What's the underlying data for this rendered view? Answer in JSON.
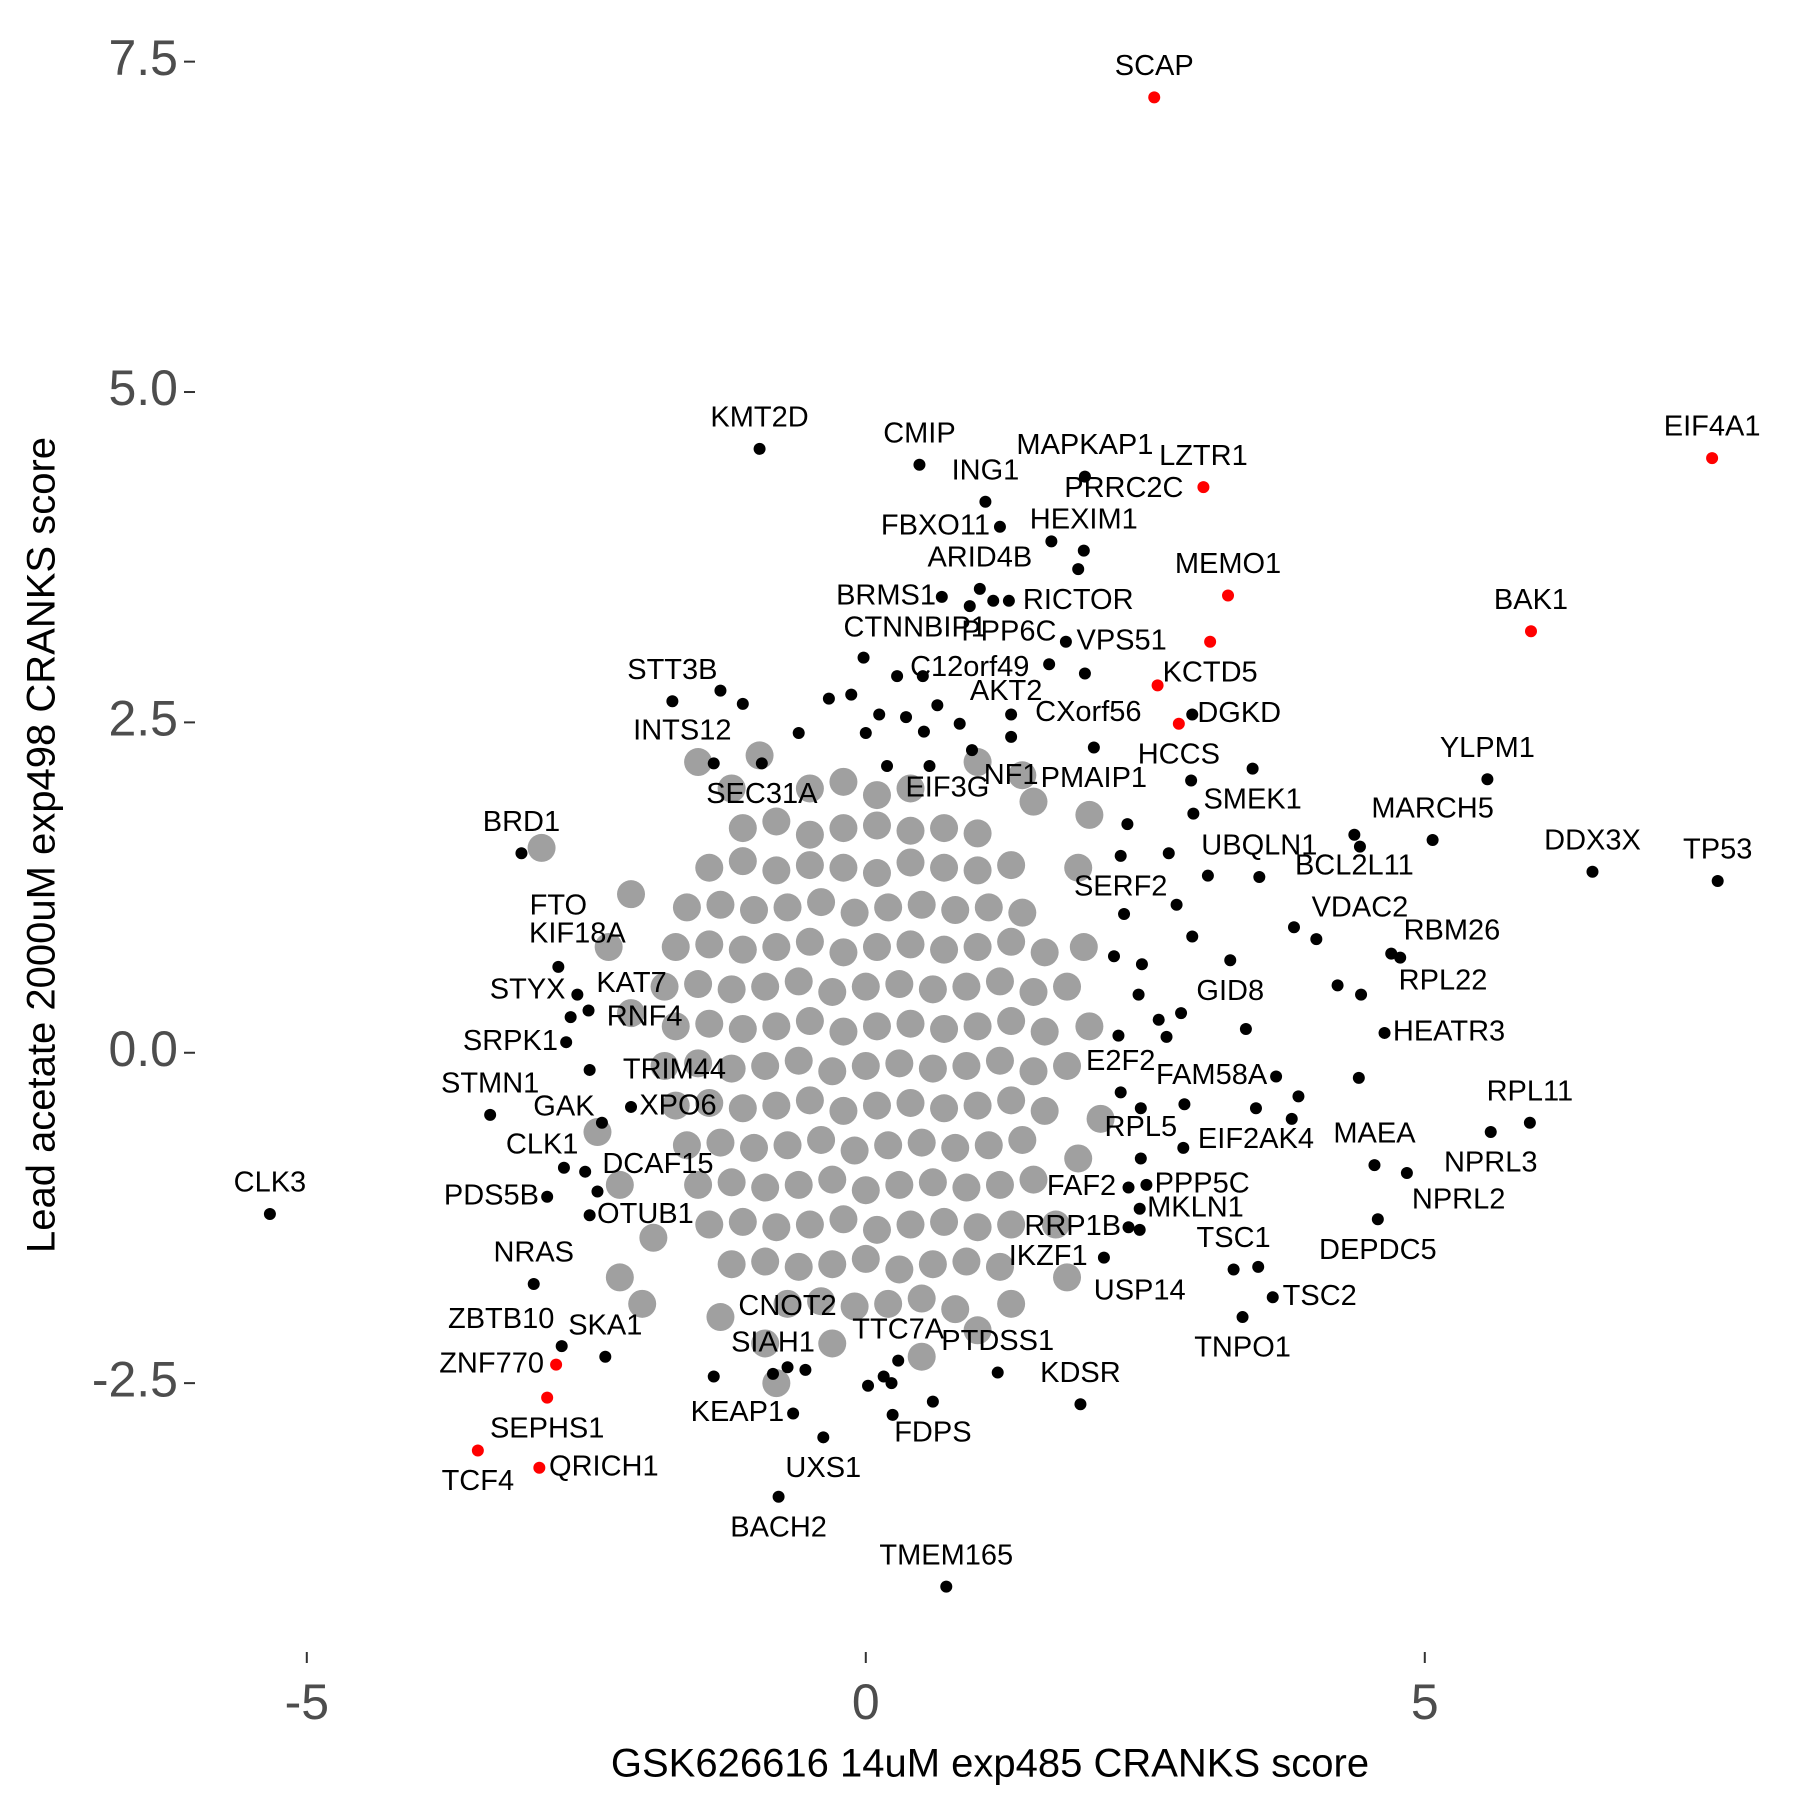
{
  "chart_data": {
    "type": "scatter",
    "xlabel": "GSK626616 14uM exp485 CRANKS score",
    "ylabel": "Lead acetate 2000uM exp498 CRANKS score",
    "xlim": [
      -6.0,
      7.9
    ],
    "ylim": [
      -4.3,
      7.8
    ],
    "xticks": [
      -5,
      0,
      5
    ],
    "yticks": [
      -2.5,
      {
        "value": 0,
        "label": "0.0"
      },
      2.5,
      {
        "value": 5,
        "label": "5.0"
      },
      7.5
    ],
    "grid": false,
    "series": [
      {
        "color": "#a0a0a0",
        "x": [
          -0.5,
          -0.2,
          0.1,
          0.4,
          -1.1,
          -0.8,
          -0.5,
          -0.2,
          0.1,
          0.4,
          0.7,
          1.0,
          -1.4,
          -1.1,
          -0.8,
          -0.5,
          -0.2,
          0.1,
          0.4,
          0.7,
          1.0,
          1.3,
          -1.6,
          -1.3,
          -1.0,
          -0.7,
          -0.4,
          -0.1,
          0.2,
          0.5,
          0.8,
          1.1,
          1.4,
          -1.7,
          -1.4,
          -1.1,
          -0.8,
          -0.5,
          -0.2,
          0.1,
          0.4,
          0.7,
          1.0,
          1.3,
          1.6,
          -1.8,
          -1.5,
          -1.2,
          -0.9,
          -0.6,
          -0.3,
          0,
          0.3,
          0.6,
          0.9,
          1.2,
          1.5,
          1.8,
          -1.7,
          -1.4,
          -1.1,
          -0.8,
          -0.5,
          -0.2,
          0.1,
          0.4,
          0.7,
          1.0,
          1.3,
          1.6,
          -1.8,
          -1.5,
          -1.2,
          -0.9,
          -0.6,
          -0.3,
          0,
          0.3,
          0.6,
          0.9,
          1.2,
          1.5,
          1.8,
          -1.7,
          -1.4,
          -1.1,
          -0.8,
          -0.5,
          -0.2,
          0.1,
          0.4,
          0.7,
          1.0,
          1.3,
          1.6,
          -1.6,
          -1.3,
          -1.0,
          -0.7,
          -0.4,
          -0.1,
          0.2,
          0.5,
          0.8,
          1.1,
          1.4,
          -1.5,
          -1.2,
          -0.9,
          -0.6,
          -0.3,
          0,
          0.3,
          0.6,
          0.9,
          1.2,
          1.5,
          -1.4,
          -1.1,
          -0.8,
          -0.5,
          -0.2,
          0.1,
          0.4,
          0.7,
          1.0,
          1.3,
          -1.2,
          -0.9,
          -0.6,
          -0.3,
          0,
          0.3,
          0.6,
          0.9,
          1.2,
          -0.7,
          -0.4,
          -0.1,
          0.2,
          0.5,
          0.8,
          -2.9,
          -1.5,
          -1.2,
          -0.95,
          -2.1,
          -2.3,
          -2.4,
          -2.2,
          -2.0,
          -2.2,
          -1.3,
          -0.9,
          -0.8,
          -0.3,
          0.5,
          1.0,
          1.3,
          1.8,
          1.9,
          2.0,
          1.95,
          1.9,
          1.5,
          1.4,
          2.0,
          1.0,
          -2.1,
          2.1,
          1.7,
          -1.9
        ],
        "y": [
          2.0,
          2.05,
          1.95,
          2.0,
          1.7,
          1.75,
          1.65,
          1.7,
          1.72,
          1.68,
          1.7,
          1.66,
          1.4,
          1.45,
          1.38,
          1.42,
          1.4,
          1.36,
          1.44,
          1.4,
          1.38,
          1.42,
          1.1,
          1.12,
          1.08,
          1.1,
          1.14,
          1.06,
          1.1,
          1.12,
          1.08,
          1.1,
          1.06,
          0.8,
          0.82,
          0.78,
          0.8,
          0.84,
          0.76,
          0.8,
          0.82,
          0.78,
          0.8,
          0.84,
          0.76,
          0.5,
          0.52,
          0.48,
          0.5,
          0.54,
          0.46,
          0.5,
          0.52,
          0.48,
          0.5,
          0.54,
          0.46,
          0.5,
          0.2,
          0.22,
          0.18,
          0.2,
          0.24,
          0.16,
          0.2,
          0.22,
          0.18,
          0.2,
          0.24,
          0.16,
          -0.1,
          -0.08,
          -0.12,
          -0.1,
          -0.06,
          -0.14,
          -0.1,
          -0.08,
          -0.12,
          -0.1,
          -0.06,
          -0.14,
          -0.1,
          -0.4,
          -0.38,
          -0.42,
          -0.4,
          -0.36,
          -0.44,
          -0.4,
          -0.38,
          -0.42,
          -0.4,
          -0.36,
          -0.44,
          -0.7,
          -0.68,
          -0.72,
          -0.7,
          -0.66,
          -0.74,
          -0.7,
          -0.68,
          -0.72,
          -0.7,
          -0.66,
          -1.0,
          -0.98,
          -1.02,
          -1.0,
          -0.96,
          -1.04,
          -1.0,
          -0.98,
          -1.02,
          -1.0,
          -0.96,
          -1.3,
          -1.28,
          -1.32,
          -1.3,
          -1.26,
          -1.34,
          -1.3,
          -1.28,
          -1.32,
          -1.3,
          -1.6,
          -1.58,
          -1.62,
          -1.6,
          -1.56,
          -1.64,
          -1.6,
          -1.58,
          -1.62,
          -1.9,
          -1.88,
          -1.92,
          -1.9,
          -1.86,
          -1.94,
          1.55,
          2.2,
          2.0,
          2.25,
          1.2,
          0.8,
          -0.6,
          -1.0,
          -1.9,
          -1.7,
          -2.0,
          -2.2,
          -2.5,
          -2.2,
          -2.3,
          -2.1,
          -1.9,
          -1.7,
          -0.8,
          0.2,
          0.8,
          1.4,
          1.9,
          2.1,
          1.8,
          2.2,
          0.3,
          -0.5,
          -1.3,
          -1.4
        ]
      },
      {
        "color": "#000000",
        "x": [
          0.48,
          -0.95,
          1.07,
          1.96,
          1.2,
          1.95,
          1.02,
          1.9,
          1.28,
          1.14,
          0.68,
          0.93,
          1.79,
          1.66,
          1.64,
          1.3,
          -1.73,
          -1.1,
          -0.93,
          2.04,
          1.3,
          2.28,
          -3.08,
          5.56,
          3.46,
          5.07,
          4.37,
          4.42,
          6.5,
          7.62,
          3.52,
          4.7,
          4.78,
          3.26,
          4.64,
          3.67,
          4.55,
          5.94,
          5.59,
          3.49,
          4.84,
          4.58,
          3.29,
          3.64,
          3.37,
          2.46,
          2.28,
          2.35,
          2.51,
          2.35,
          2.45,
          2.45,
          2.13,
          1.18,
          1.92,
          0.6,
          0.29,
          0.72,
          -0.83,
          -0.7,
          -0.65,
          -0.38,
          -0.78,
          -2.33,
          -2.72,
          -2.97,
          -2.47,
          -2.4,
          -2.51,
          -2.7,
          -2.85,
          -5.33,
          -3.36,
          -2.36,
          -2.1,
          -2.68,
          -2.47,
          -2.64,
          -2.48,
          -2.58,
          -2.75,
          2.92
        ],
        "y": [
          4.45,
          4.57,
          4.17,
          4.36,
          3.98,
          3.8,
          3.51,
          3.66,
          3.42,
          3.42,
          3.45,
          3.38,
          3.11,
          3.87,
          2.94,
          2.56,
          2.66,
          2.64,
          2.19,
          2.31,
          2.39,
          1.49,
          1.51,
          2.07,
          2.15,
          1.61,
          1.65,
          1.56,
          1.37,
          1.3,
          1.33,
          0.75,
          0.72,
          0.7,
          0.15,
          -0.18,
          -0.85,
          -0.53,
          -0.6,
          -0.42,
          -0.91,
          -1.26,
          -1.64,
          -1.85,
          -2.0,
          -0.8,
          -0.3,
          -1.02,
          -1.0,
          -1.32,
          -1.18,
          -1.34,
          -1.55,
          -2.42,
          -2.66,
          -2.64,
          -2.33,
          -4.04,
          -2.43,
          -2.38,
          -2.73,
          -2.91,
          -3.36,
          -2.3,
          -2.22,
          -1.75,
          -1.23,
          -1.05,
          -0.9,
          -0.87,
          -1.09,
          -1.22,
          -0.47,
          -0.53,
          -0.41,
          0.08,
          -0.13,
          0.27,
          0.32,
          0.44,
          0.65,
          2.56
        ],
        "labels": [
          "CMIP",
          "KMT2D",
          "ING1",
          "MAPKAP1",
          "FBXO11",
          "HEXIM1",
          "ARID4B",
          "RICTOR",
          "PPP6C",
          "CTNNBIP1",
          "BRMS1",
          "C12orf49",
          "VPS51",
          "PRRC2C",
          "AKT2",
          "NF1",
          "STT3B",
          "INTS12",
          "SEC31A",
          "PMAIP1",
          "EIF3G",
          "SERF2",
          "BRD1",
          "YLPM1",
          "SMEK1",
          "MARCH5",
          "BCL2L11",
          "VDAC2",
          "DDX3X",
          "TP53",
          "UBQLN1",
          "RPL22",
          "RBM26",
          "GID8",
          "HEATR3",
          "FAM58A",
          "MAEA",
          "RPL11",
          "NPRL3",
          "EIF2AK4",
          "NPRL2",
          "DEPDC5",
          "TSC1",
          "TSC2",
          "TNPO1",
          "RPL5",
          "E2F2",
          "FAF2",
          "PPP5C",
          "RRP1B",
          "MKLN1",
          "USP14",
          "IKZF1",
          "PTDSS1",
          "KDSR",
          "FDPS",
          "TTC7A",
          "TMEM165",
          "SIAH1",
          "CNOT2",
          "KEAP1",
          "UXS1",
          "BACH2",
          "SKA1",
          "ZBTB10",
          "NRAS",
          "OTUB1",
          "DCAF15",
          "CLK1",
          "GAK",
          "PDS5B",
          "CLK3",
          "STMN1",
          "TRIM44",
          "XPO6",
          "SRPK1",
          "RNF4",
          "STYX",
          "KAT7",
          "KIF18A",
          "FTO",
          "DGKD"
        ]
      },
      {
        "color": "#000000",
        "x": [
          -0.02,
          0.28,
          0.51,
          -0.33,
          -0.13,
          0.12,
          0.36,
          0.64,
          0.84,
          -0.6,
          0.0,
          0.52,
          0.95,
          0.19,
          0.57,
          1.96,
          2.91,
          2.93,
          2.34,
          2.71,
          3.06,
          2.78,
          2.31,
          2.92,
          2.22,
          2.47,
          3.83,
          4.03,
          4.22,
          4.43,
          2.44,
          2.62,
          2.82,
          3.4,
          2.26,
          2.69,
          3.87,
          4.41,
          2.85,
          2.46,
          2.84,
          3.81,
          3.51,
          -1.36,
          -1.3,
          0.23,
          0.16,
          0.02,
          0.24,
          -0.54,
          -1.36
        ],
        "y": [
          2.99,
          2.85,
          2.85,
          2.68,
          2.71,
          2.56,
          2.54,
          2.63,
          2.49,
          2.42,
          2.42,
          2.43,
          2.29,
          2.17,
          2.17,
          2.87,
          2.06,
          1.81,
          1.73,
          1.51,
          1.34,
          1.12,
          1.05,
          0.88,
          0.73,
          0.67,
          0.95,
          0.86,
          0.51,
          0.44,
          0.44,
          0.25,
          0.3,
          0.18,
          0.13,
          0.12,
          -0.33,
          -0.19,
          -0.39,
          -0.42,
          -0.72,
          -0.5,
          -1.62,
          2.19,
          2.74,
          -2.5,
          -2.45,
          -2.52,
          -2.74,
          -2.4,
          -2.45
        ]
      },
      {
        "color": "#ff0000",
        "x": [
          2.58,
          7.57,
          3.02,
          3.24,
          3.08,
          5.95,
          2.61,
          2.8,
          -2.77,
          -2.85,
          -3.47,
          -2.92
        ],
        "y": [
          7.23,
          4.5,
          4.28,
          3.46,
          3.11,
          3.19,
          2.78,
          2.49,
          -2.36,
          -2.61,
          -3.01,
          -3.14
        ],
        "labels": [
          "SCAP",
          "EIF4A1",
          "LZTR1",
          "MEMO1",
          "KCTD5",
          "BAK1",
          "CXorf56",
          "HCCS",
          "ZNF770",
          "SEPHS1",
          "TCF4",
          "QRICH1"
        ]
      }
    ]
  }
}
